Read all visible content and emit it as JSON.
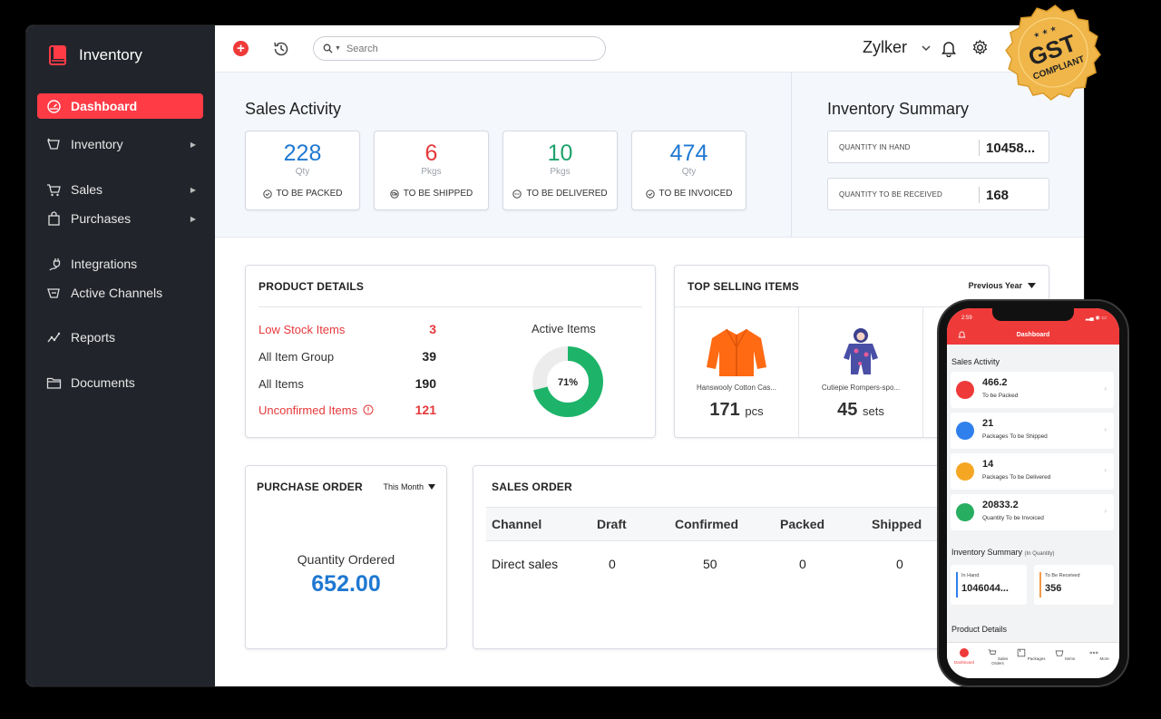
{
  "app": {
    "name": "Inventory"
  },
  "sidebar": {
    "items": [
      {
        "label": "Dashboard",
        "icon": "dashboard-gauge-icon",
        "active": true
      },
      {
        "label": "Inventory",
        "icon": "basket-icon"
      },
      {
        "label": "Sales",
        "icon": "cart-icon"
      },
      {
        "label": "Purchases",
        "icon": "bag-icon"
      },
      {
        "label": "Integrations",
        "icon": "plug-icon"
      },
      {
        "label": "Active Channels",
        "icon": "channels-icon"
      },
      {
        "label": "Reports",
        "icon": "chart-line-icon"
      },
      {
        "label": "Documents",
        "icon": "folder-icon"
      }
    ]
  },
  "header": {
    "search_placeholder": "Search",
    "org_name": "Zylker"
  },
  "sales_activity": {
    "title": "Sales Activity",
    "cards": [
      {
        "value": "228",
        "unit": "Qty",
        "label": "TO BE PACKED",
        "color": "#1f78d1"
      },
      {
        "value": "6",
        "unit": "Pkgs",
        "label": "TO BE SHIPPED",
        "color": "#e5383b"
      },
      {
        "value": "10",
        "unit": "Pkgs",
        "label": "TO BE DELIVERED",
        "color": "#1ea36b"
      },
      {
        "value": "474",
        "unit": "Qty",
        "label": "TO BE INVOICED",
        "color": "#1f78d1"
      }
    ]
  },
  "inventory_summary": {
    "title": "Inventory Summary",
    "rows": [
      {
        "label": "QUANTITY IN HAND",
        "value": "10458..."
      },
      {
        "label": "QUANTITY TO BE RECEIVED",
        "value": "168"
      }
    ]
  },
  "product_details": {
    "title": "PRODUCT DETAILS",
    "rows": [
      {
        "label": "Low Stock Items",
        "value": "3",
        "alert": true
      },
      {
        "label": "All Item Group",
        "value": "39"
      },
      {
        "label": "All Items",
        "value": "190"
      },
      {
        "label": "Unconfirmed Items",
        "value": "121",
        "alert": true
      }
    ],
    "active_items_label": "Active Items",
    "active_items_percent": "71%",
    "active_fraction": 0.71
  },
  "top_selling": {
    "title": "TOP SELLING ITEMS",
    "period": "Previous Year",
    "items": [
      {
        "name": "Hanswooly Cotton Cas...",
        "qty": "171",
        "unit": "pcs"
      },
      {
        "name": "Cutiepie Rompers-spo...",
        "qty": "45",
        "unit": "sets"
      }
    ]
  },
  "purchase_order": {
    "title": "PURCHASE ORDER",
    "period": "This Month",
    "label": "Quantity Ordered",
    "value": "652.00"
  },
  "sales_order": {
    "title": "SALES ORDER",
    "columns": [
      "Channel",
      "Draft",
      "Confirmed",
      "Packed",
      "Shipped"
    ],
    "rows": [
      [
        "Direct sales",
        "0",
        "50",
        "0",
        "0"
      ]
    ]
  },
  "badge": {
    "line1": "GST",
    "line2": "COMPLIANT"
  },
  "phone": {
    "time": "2:59",
    "title": "Dashboard",
    "sales_activity_title": "Sales Activity",
    "cards": [
      {
        "value": "466.2",
        "label": "To be Packed",
        "color": "#ef3a3a"
      },
      {
        "value": "21",
        "label": "Packages To be Shipped",
        "color": "#2f80ed"
      },
      {
        "value": "14",
        "label": "Packages To be Delivered",
        "color": "#f5a623"
      },
      {
        "value": "20833.2",
        "label": "Quantity To be Invoiced",
        "color": "#27ae60"
      }
    ],
    "inventory_summary_title": "Inventory Summary",
    "inventory_summary_sub": "(In Quantity)",
    "in_hand_label": "In Hand",
    "in_hand_value": "1046044...",
    "to_receive_label": "To Be Received",
    "to_receive_value": "356",
    "product_details_title": "Product Details",
    "nav": [
      "Dashboard",
      "Sales Orders",
      "Packages",
      "Items",
      "More"
    ]
  }
}
